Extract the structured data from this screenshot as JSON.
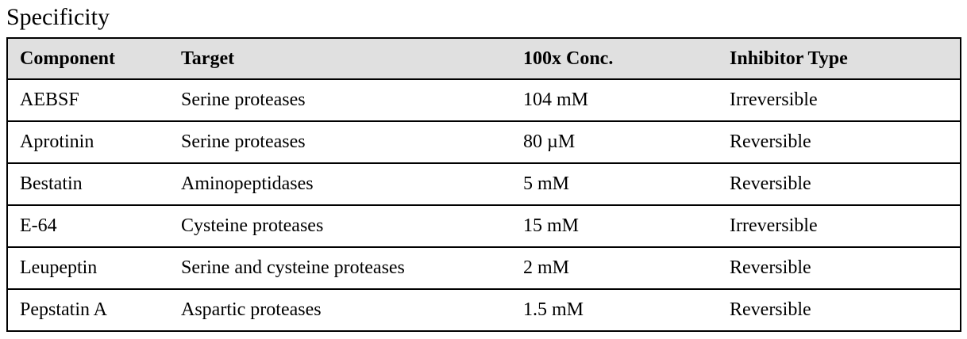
{
  "header": {
    "title": "Specificity"
  },
  "table": {
    "columns": [
      "Component",
      "Target",
      "100x Conc.",
      "Inhibitor Type"
    ],
    "rows": [
      [
        "AEBSF",
        "Serine proteases",
        "104 mM",
        "Irreversible"
      ],
      [
        "Aprotinin",
        "Serine proteases",
        "80 µM",
        "Reversible"
      ],
      [
        "Bestatin",
        "Aminopeptidases",
        "5 mM",
        "Reversible"
      ],
      [
        "E-64",
        "Cysteine proteases",
        "15 mM",
        "Irreversible"
      ],
      [
        "Leupeptin",
        "Serine and cysteine proteases",
        "2 mM",
        "Reversible"
      ],
      [
        "Pepstatin A",
        "Aspartic proteases",
        "1.5 mM",
        "Reversible"
      ]
    ]
  }
}
